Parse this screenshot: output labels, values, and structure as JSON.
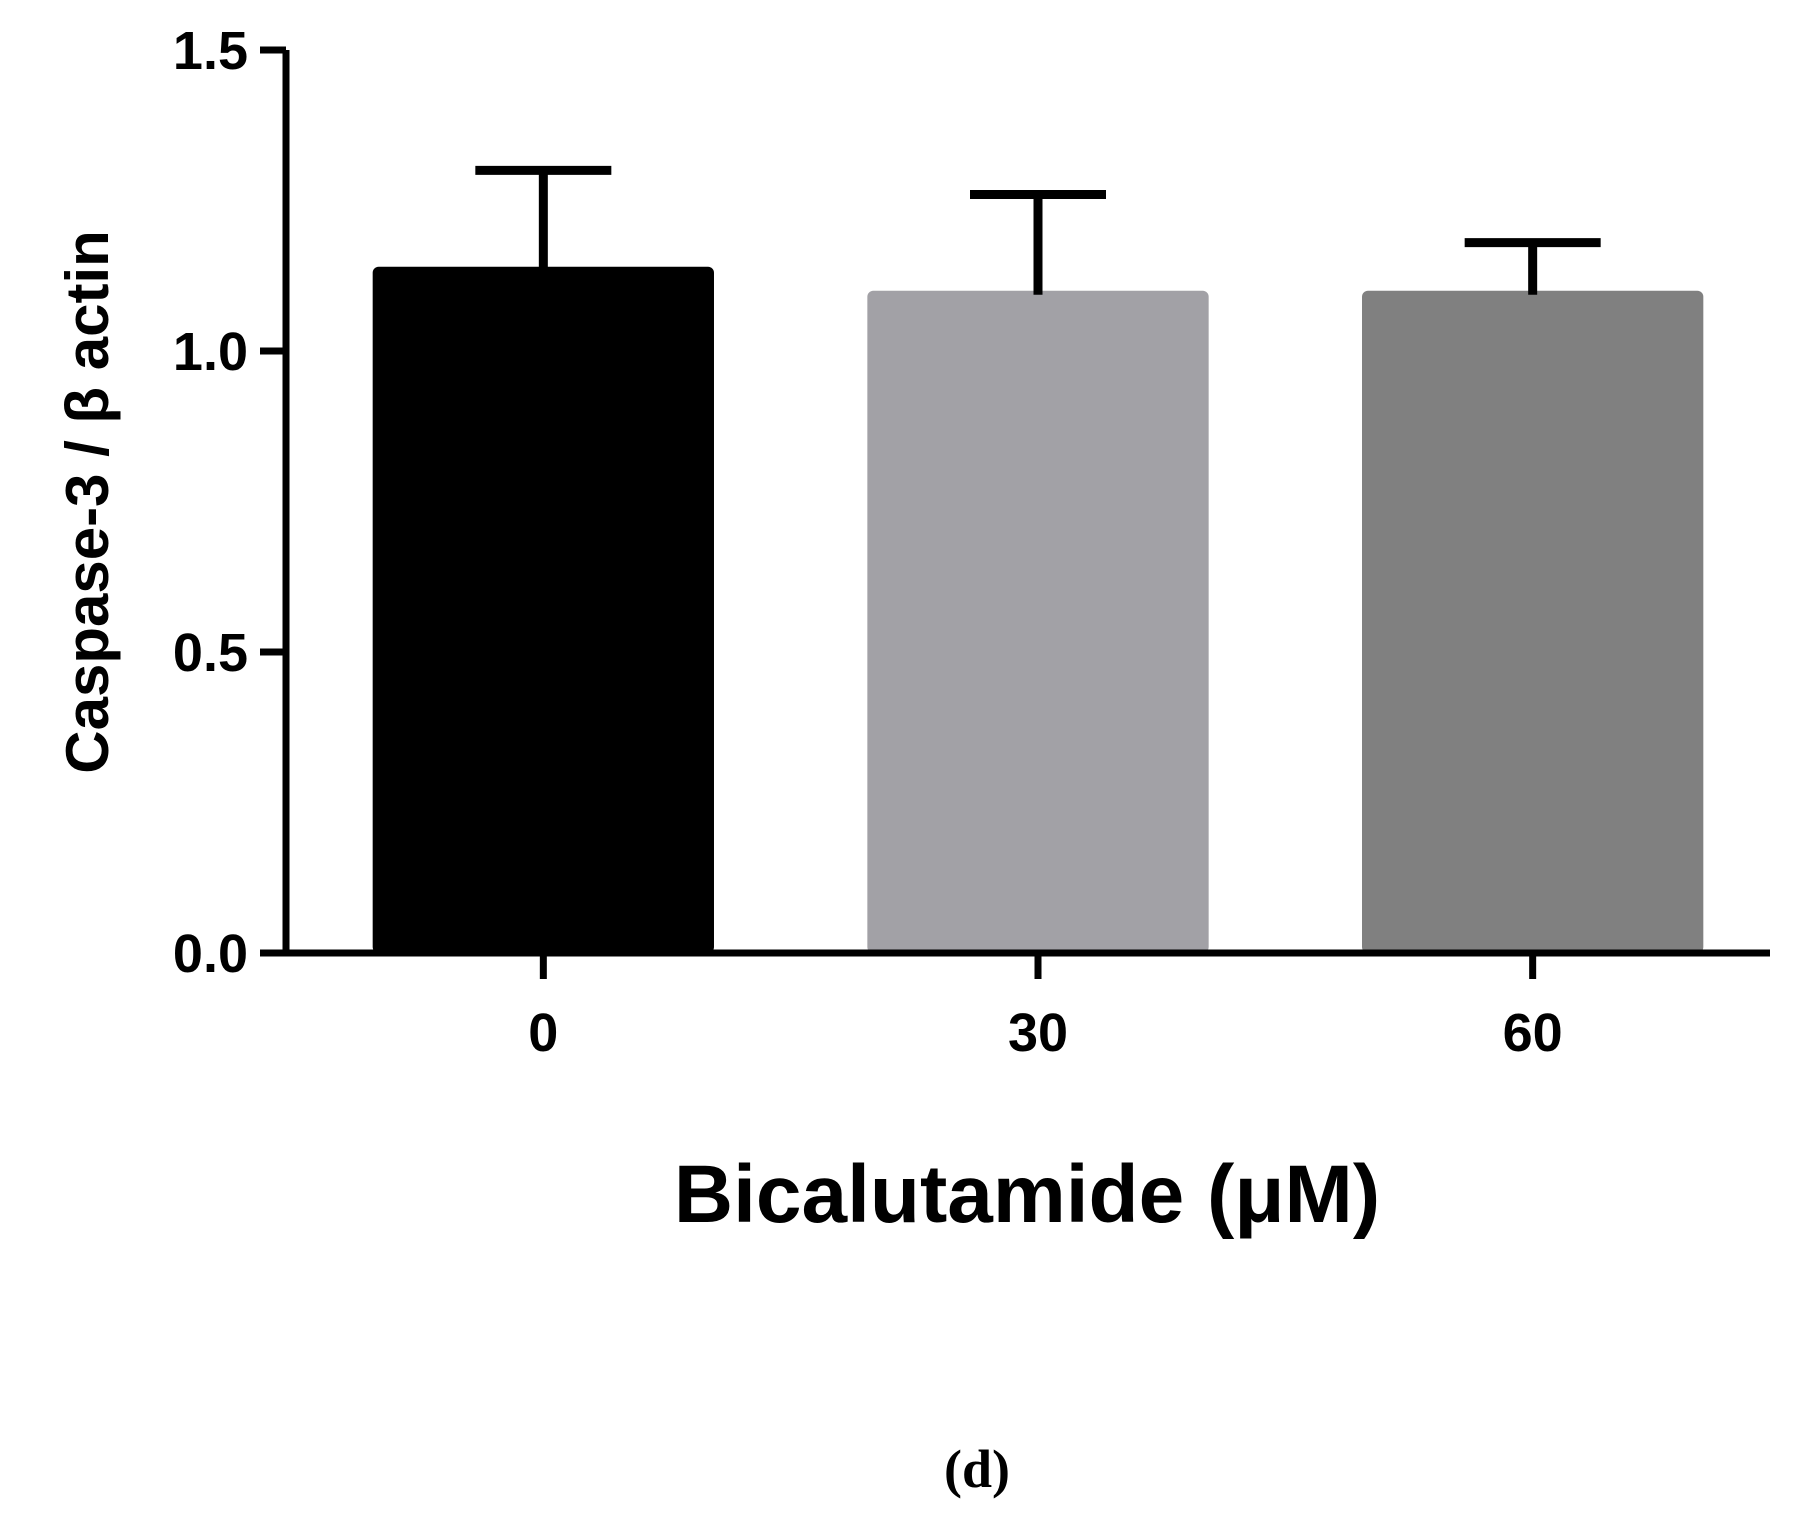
{
  "chart_data": {
    "type": "bar",
    "categories": [
      "0",
      "30",
      "60"
    ],
    "values": [
      1.14,
      1.1,
      1.1
    ],
    "errors": [
      0.16,
      0.16,
      0.08
    ],
    "colors": [
      "#000000",
      "#a2a1a6",
      "#808080"
    ],
    "ylim": [
      0,
      1.5
    ],
    "yticks": [
      "0.0",
      "0.5",
      "1.0",
      "1.5"
    ],
    "ytick_values": [
      0,
      0.5,
      1.0,
      1.5
    ],
    "ylabel": "Caspase-3 / β actin",
    "xlabel": "Bicalutamide (μM)",
    "grid": false,
    "legend": "none"
  },
  "panel_label": "(d)"
}
